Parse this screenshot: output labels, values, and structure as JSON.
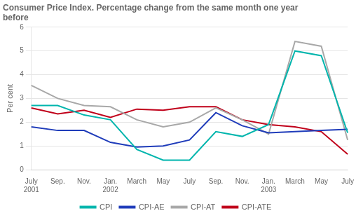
{
  "chart_data": {
    "type": "line",
    "title": "Consumer Price Index. Percentage change from the same month one year\nbefore",
    "ylabel": "Per cent",
    "categories": [
      "July\n2001",
      "Sep.",
      "Nov.",
      "Jan.\n2002",
      "March",
      "May",
      "July",
      "Sep.",
      "Nov.",
      "Jan.\n2003",
      "March",
      "May",
      "July"
    ],
    "series": [
      {
        "name": "CPI",
        "color": "#00b5ad",
        "values": [
          2.7,
          2.7,
          2.3,
          2.1,
          0.85,
          0.4,
          0.4,
          1.6,
          1.4,
          1.9,
          5.0,
          4.8,
          1.55
        ]
      },
      {
        "name": "CPI-AE",
        "color": "#1f3cba",
        "values": [
          1.8,
          1.65,
          1.65,
          1.15,
          0.95,
          1.0,
          1.25,
          2.4,
          1.85,
          1.55,
          1.6,
          1.65,
          1.7
        ]
      },
      {
        "name": "CPI-AT",
        "color": "#a8a8a8",
        "values": [
          3.55,
          3.0,
          2.7,
          2.65,
          2.1,
          1.8,
          2.0,
          2.6,
          2.1,
          1.5,
          5.4,
          5.2,
          1.25
        ]
      },
      {
        "name": "CPI-ATE",
        "color": "#c0001a",
        "values": [
          2.6,
          2.35,
          2.5,
          2.2,
          2.55,
          2.5,
          2.65,
          2.65,
          2.1,
          1.9,
          1.8,
          1.6,
          0.65
        ]
      }
    ],
    "ylim": [
      0,
      6
    ],
    "yticks": [
      0,
      1,
      2,
      3,
      4,
      5,
      6
    ],
    "grid": true,
    "legend": "bottom"
  }
}
